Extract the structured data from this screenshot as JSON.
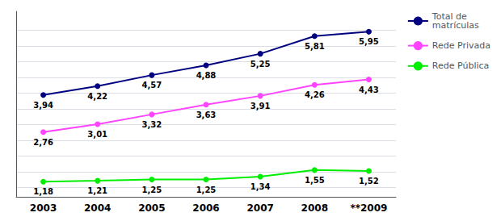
{
  "chart_data": {
    "type": "line",
    "categories": [
      "2003",
      "2004",
      "2005",
      "2006",
      "2007",
      "2008",
      "**2009"
    ],
    "series": [
      {
        "name": "Total de\nmatrículas",
        "color": "#000080",
        "marker": "circle",
        "values": [
          3.94,
          4.22,
          4.57,
          4.88,
          5.25,
          5.81,
          5.95
        ],
        "value_labels": [
          "3,94",
          "4,22",
          "4,57",
          "4,88",
          "5,25",
          "5,81",
          "5,95"
        ]
      },
      {
        "name": "Rede Privada",
        "color": "#FF44FF",
        "marker": "circle",
        "values": [
          2.76,
          3.01,
          3.32,
          3.63,
          3.91,
          4.26,
          4.43
        ],
        "value_labels": [
          "2,76",
          "3,01",
          "3,32",
          "3,63",
          "3,91",
          "4,26",
          "4,43"
        ]
      },
      {
        "name": "Rede Pública",
        "color": "#00EE00",
        "marker": "circle",
        "values": [
          1.18,
          1.21,
          1.25,
          1.25,
          1.34,
          1.55,
          1.52
        ],
        "value_labels": [
          "1,18",
          "1,21",
          "1,25",
          "1,25",
          "1,34",
          "1,55",
          "1,52"
        ]
      }
    ],
    "ylim": [
      0.7,
      6.6
    ],
    "yticks": [
      1.0,
      1.5,
      2.0,
      2.5,
      3.0,
      3.5,
      4.0,
      4.5,
      5.0,
      5.5,
      6.0
    ],
    "grid": true,
    "tick_labels": "x",
    "data_labels": true,
    "legend": "upper right"
  }
}
